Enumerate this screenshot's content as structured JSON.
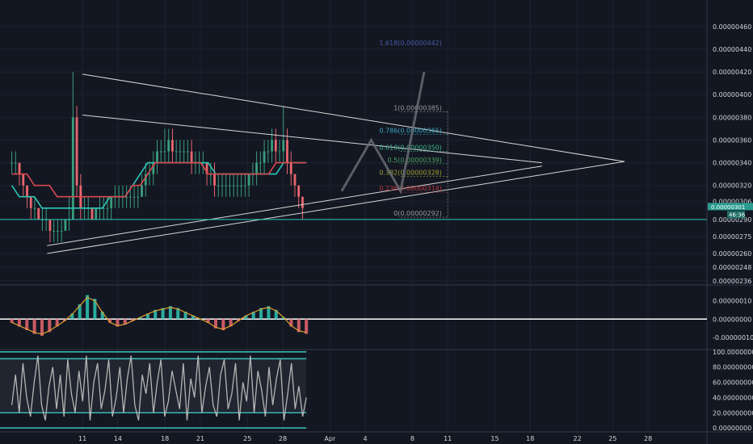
{
  "colors": {
    "background": "#131722",
    "grid": "#1e2230",
    "axis_text": "#d1d4dc",
    "up_candle": "#3a9c7c",
    "down_candle": "#e8666e",
    "teal_ma": "#2ec7b5",
    "red_ma": "#d9484e",
    "trend_lines": "#d8d8d8",
    "projection": "#6d6f78",
    "price_tag": "#2a9d8f",
    "stoch_line": "#b5b5b5",
    "stoch_band": "#3bc3c0"
  },
  "chart_data": [
    {
      "type": "candlestick",
      "panel": "price",
      "y_axis_ticks": [
        "0.00000460",
        "0.00000440",
        "0.00000420",
        "0.00000400",
        "0.00000380",
        "0.00000360",
        "0.00000340",
        "0.00000320",
        "0.00000306",
        "0.00000290",
        "0.00000275",
        "0.00000260",
        "0.00000248",
        "0.00000236"
      ],
      "y_tick_values": [
        4.6e-06,
        4.4e-06,
        4.2e-06,
        4e-06,
        3.8e-06,
        3.6e-06,
        3.4e-06,
        3.2e-06,
        3.06e-06,
        2.9e-06,
        2.75e-06,
        2.6e-06,
        2.48e-06,
        2.36e-06
      ],
      "ylim": [
        2.33e-06,
        4.72e-06
      ],
      "x_axis_ticks": [
        "11",
        "14",
        "18",
        "21",
        "25",
        "28",
        "Apr",
        "4",
        "8",
        "11",
        "15",
        "18",
        "22",
        "25",
        "28"
      ],
      "x_tick_days": [
        11,
        14,
        18,
        21,
        25,
        28,
        32,
        35,
        39,
        42,
        46,
        49,
        53,
        56,
        59
      ],
      "xlim": [
        4,
        64
      ],
      "last_price": "0.00000301",
      "countdown": "46:36",
      "support_level": 2.9e-06,
      "ohlc": [
        [
          3.4e-06,
          3.5e-06,
          3.3e-06,
          3.4e-06
        ],
        [
          3.4e-06,
          3.5e-06,
          3.3e-06,
          3.4e-06
        ],
        [
          3.4e-06,
          3.4e-06,
          3.2e-06,
          3.3e-06
        ],
        [
          3.3e-06,
          3.3e-06,
          3.1e-06,
          3.2e-06
        ],
        [
          3.2e-06,
          3.2e-06,
          3e-06,
          3.1e-06
        ],
        [
          3.1e-06,
          3.1e-06,
          2.9e-06,
          3e-06
        ],
        [
          3e-06,
          3.1e-06,
          2.9e-06,
          3e-06
        ],
        [
          3e-06,
          3e-06,
          2.9e-06,
          2.9e-06
        ],
        [
          2.9e-06,
          3e-06,
          2.8e-06,
          2.9e-06
        ],
        [
          2.9e-06,
          3e-06,
          2.8e-06,
          2.9e-06
        ],
        [
          2.9e-06,
          2.9e-06,
          2.7e-06,
          2.8e-06
        ],
        [
          2.8e-06,
          2.9e-06,
          2.7e-06,
          2.8e-06
        ],
        [
          2.8e-06,
          2.9e-06,
          2.7e-06,
          2.8e-06
        ],
        [
          2.8e-06,
          2.9e-06,
          2.7e-06,
          2.8e-06
        ],
        [
          2.8e-06,
          2.9e-06,
          2.8e-06,
          2.9e-06
        ],
        [
          2.9e-06,
          3.1e-06,
          2.8e-06,
          2.9e-06
        ],
        [
          2.9e-06,
          4.2e-06,
          2.9e-06,
          3.8e-06
        ],
        [
          3.8e-06,
          3.9e-06,
          3.1e-06,
          3.2e-06
        ],
        [
          3.2e-06,
          3.3e-06,
          2.9e-06,
          3e-06
        ],
        [
          3e-06,
          3.1e-06,
          2.9e-06,
          3e-06
        ],
        [
          3e-06,
          3.1e-06,
          2.9e-06,
          3e-06
        ],
        [
          3e-06,
          3e-06,
          2.9e-06,
          2.9e-06
        ],
        [
          2.9e-06,
          3e-06,
          2.9e-06,
          3e-06
        ],
        [
          3e-06,
          3.1e-06,
          2.9e-06,
          3e-06
        ],
        [
          3e-06,
          3.1e-06,
          2.9e-06,
          3e-06
        ],
        [
          3e-06,
          3.1e-06,
          2.9e-06,
          3e-06
        ],
        [
          3e-06,
          3.1e-06,
          2.9e-06,
          3.1e-06
        ],
        [
          3.1e-06,
          3.2e-06,
          3e-06,
          3.1e-06
        ],
        [
          3.1e-06,
          3.2e-06,
          3e-06,
          3.1e-06
        ],
        [
          3.1e-06,
          3.2e-06,
          3e-06,
          3.1e-06
        ],
        [
          3.1e-06,
          3.2e-06,
          3e-06,
          3.1e-06
        ],
        [
          3.1e-06,
          3.2e-06,
          3e-06,
          3.1e-06
        ],
        [
          3.1e-06,
          3.2e-06,
          3e-06,
          3.1e-06
        ],
        [
          3.1e-06,
          3.2e-06,
          3e-06,
          3.1e-06
        ],
        [
          3.1e-06,
          3.3e-06,
          3.1e-06,
          3.2e-06
        ],
        [
          3.2e-06,
          3.4e-06,
          3.1e-06,
          3.3e-06
        ],
        [
          3.3e-06,
          3.4e-06,
          3.2e-06,
          3.3e-06
        ],
        [
          3.3e-06,
          3.5e-06,
          3.2e-06,
          3.4e-06
        ],
        [
          3.4e-06,
          3.6e-06,
          3.3e-06,
          3.5e-06
        ],
        [
          3.5e-06,
          3.6e-06,
          3.4e-06,
          3.5e-06
        ],
        [
          3.5e-06,
          3.7e-06,
          3.4e-06,
          3.5e-06
        ],
        [
          3.5e-06,
          3.7e-06,
          3.4e-06,
          3.6e-06
        ],
        [
          3.6e-06,
          3.7e-06,
          3.4e-06,
          3.5e-06
        ],
        [
          3.5e-06,
          3.6e-06,
          3.4e-06,
          3.5e-06
        ],
        [
          3.5e-06,
          3.6e-06,
          3.4e-06,
          3.5e-06
        ],
        [
          3.5e-06,
          3.6e-06,
          3.4e-06,
          3.5e-06
        ],
        [
          3.5e-06,
          3.6e-06,
          3.4e-06,
          3.5e-06
        ],
        [
          3.5e-06,
          3.6e-06,
          3.3e-06,
          3.4e-06
        ],
        [
          3.4e-06,
          3.5e-06,
          3.3e-06,
          3.4e-06
        ],
        [
          3.4e-06,
          3.5e-06,
          3.3e-06,
          3.4e-06
        ],
        [
          3.4e-06,
          3.5e-06,
          3.3e-06,
          3.4e-06
        ],
        [
          3.4e-06,
          3.4e-06,
          3.2e-06,
          3.3e-06
        ],
        [
          3.3e-06,
          3.4e-06,
          3.2e-06,
          3.3e-06
        ],
        [
          3.3e-06,
          3.4e-06,
          3.1e-06,
          3.2e-06
        ],
        [
          3.2e-06,
          3.3e-06,
          3.1e-06,
          3.2e-06
        ],
        [
          3.2e-06,
          3.3e-06,
          3.1e-06,
          3.2e-06
        ],
        [
          3.2e-06,
          3.3e-06,
          3.1e-06,
          3.2e-06
        ],
        [
          3.2e-06,
          3.3e-06,
          3.1e-06,
          3.2e-06
        ],
        [
          3.2e-06,
          3.3e-06,
          3.1e-06,
          3.2e-06
        ],
        [
          3.2e-06,
          3.3e-06,
          3.1e-06,
          3.2e-06
        ],
        [
          3.2e-06,
          3.3e-06,
          3.1e-06,
          3.2e-06
        ],
        [
          3.2e-06,
          3.3e-06,
          3.1e-06,
          3.2e-06
        ],
        [
          3.2e-06,
          3.3e-06,
          3.1e-06,
          3.3e-06
        ],
        [
          3.3e-06,
          3.4e-06,
          3.2e-06,
          3.3e-06
        ],
        [
          3.3e-06,
          3.5e-06,
          3.2e-06,
          3.4e-06
        ],
        [
          3.4e-06,
          3.5e-06,
          3.3e-06,
          3.4e-06
        ],
        [
          3.4e-06,
          3.6e-06,
          3.3e-06,
          3.5e-06
        ],
        [
          3.5e-06,
          3.6e-06,
          3.4e-06,
          3.5e-06
        ],
        [
          3.5e-06,
          3.7e-06,
          3.4e-06,
          3.6e-06
        ],
        [
          3.6e-06,
          3.7e-06,
          3.4e-06,
          3.5e-06
        ],
        [
          3.5e-06,
          3.6e-06,
          3.4e-06,
          3.5e-06
        ],
        [
          3.5e-06,
          3.9e-06,
          3.4e-06,
          3.6e-06
        ],
        [
          3.6e-06,
          3.7e-06,
          3.3e-06,
          3.4e-06
        ],
        [
          3.4e-06,
          3.5e-06,
          3.2e-06,
          3.3e-06
        ],
        [
          3.3e-06,
          3.3e-06,
          3.1e-06,
          3.2e-06
        ],
        [
          3.2e-06,
          3.2e-06,
          3e-06,
          3.1e-06
        ],
        [
          3.1e-06,
          3.1e-06,
          2.9e-06,
          3e-06
        ]
      ],
      "moving_averages": [
        {
          "color": "teal",
          "values": [
            3.2e-06,
            3.1e-06,
            3.1e-06,
            3.1e-06,
            3e-06,
            3e-06,
            3e-06,
            3e-06,
            3e-06,
            3e-06,
            3e-06,
            3e-06,
            3e-06,
            3.1e-06,
            3.1e-06,
            3.1e-06,
            3.2e-06,
            3.3e-06,
            3.4e-06,
            3.4e-06,
            3.4e-06,
            3.4e-06,
            3.4e-06,
            3.4e-06,
            3.4e-06,
            3.4e-06,
            3.4e-06,
            3.3e-06,
            3.3e-06,
            3.3e-06,
            3.3e-06,
            3.3e-06,
            3.3e-06,
            3.3e-06,
            3.3e-06,
            3.3e-06,
            3.4e-06,
            3.4e-06,
            3.4e-06,
            3.4e-06
          ]
        },
        {
          "color": "red",
          "values": [
            3.3e-06,
            3.3e-06,
            3.3e-06,
            3.2e-06,
            3.2e-06,
            3.2e-06,
            3.1e-06,
            3.1e-06,
            3.1e-06,
            3.1e-06,
            3.1e-06,
            3.1e-06,
            3.1e-06,
            3.1e-06,
            3.1e-06,
            3.1e-06,
            3.2e-06,
            3.2e-06,
            3.3e-06,
            3.4e-06,
            3.4e-06,
            3.4e-06,
            3.4e-06,
            3.4e-06,
            3.4e-06,
            3.4e-06,
            3.3e-06,
            3.3e-06,
            3.3e-06,
            3.3e-06,
            3.3e-06,
            3.3e-06,
            3.3e-06,
            3.3e-06,
            3.3e-06,
            3.4e-06,
            3.4e-06,
            3.4e-06,
            3.4e-06,
            3.4e-06
          ]
        }
      ],
      "projection": [
        [
          33,
          3.15e-06
        ],
        [
          35.5,
          3.6e-06
        ],
        [
          38,
          3.15e-06
        ],
        [
          40,
          4.2e-06
        ]
      ],
      "fib_levels": [
        {
          "label": "1.618(0.00000442)",
          "value": 4.42e-06,
          "color": "#4b5aa8"
        },
        {
          "label": "1(0.00000385)",
          "value": 3.85e-06,
          "color": "#9b9b9b"
        },
        {
          "label": "0.786(0.00000365)",
          "value": 3.65e-06,
          "color": "#3aa6c2"
        },
        {
          "label": "0.618(0.00000350)",
          "value": 3.5e-06,
          "color": "#3bb58a"
        },
        {
          "label": "0.5(0.00000339)",
          "value": 3.39e-06,
          "color": "#4aa25c"
        },
        {
          "label": "0.382(0.00000328)",
          "value": 3.28e-06,
          "color": "#a0a02d"
        },
        {
          "label": "0.236(0.00000314)",
          "value": 3.14e-06,
          "color": "#c0393f"
        },
        {
          "label": "0(0.00000292)",
          "value": 2.92e-06,
          "color": "#9b9b9b"
        }
      ]
    },
    {
      "type": "macd",
      "panel": "macd",
      "y_axis_ticks": [
        "0.00000010",
        "0.00000000",
        "-0.00000010"
      ],
      "y_tick_values": [
        1e-07,
        0,
        -1e-07
      ],
      "ylim": [
        -1.6e-07,
        1.8e-07
      ],
      "values": [
        -2e-08,
        -4e-08,
        -6e-08,
        -8e-08,
        -9e-08,
        -7e-08,
        -4e-08,
        -1e-08,
        3e-08,
        8e-08,
        1.3e-07,
        1.1e-07,
        4e-08,
        -2e-08,
        -4e-08,
        -3e-08,
        -1e-08,
        1e-08,
        3e-08,
        5e-08,
        6e-08,
        7e-08,
        6e-08,
        4e-08,
        2e-08,
        0,
        -2e-08,
        -5e-08,
        -6e-08,
        -4e-08,
        -1e-08,
        2e-08,
        4e-08,
        6e-08,
        7e-08,
        5e-08,
        1e-08,
        -4e-08,
        -7e-08,
        -8e-08
      ]
    },
    {
      "type": "stochastic",
      "panel": "stoch",
      "y_axis_ticks": [
        "100.00000000",
        "80.00000000",
        "60.00000000",
        "40.00000000",
        "20.00000000",
        "0.00000000"
      ],
      "y_tick_values": [
        100,
        80,
        60,
        40,
        20,
        0
      ],
      "ylim": [
        -2,
        102
      ],
      "bands": [
        91,
        20
      ],
      "values": [
        30,
        70,
        20,
        85,
        40,
        15,
        60,
        95,
        30,
        10,
        55,
        80,
        25,
        70,
        15,
        90,
        45,
        20,
        75,
        35,
        95,
        10,
        60,
        85,
        25,
        50,
        90,
        15,
        40,
        80,
        20,
        65,
        95,
        30,
        10,
        70,
        45,
        85,
        20,
        60,
        90,
        15,
        35,
        75,
        50,
        25,
        85,
        10,
        65,
        40,
        95,
        20,
        55,
        80,
        30,
        15,
        70,
        90,
        25,
        45,
        85,
        10,
        60,
        35,
        95,
        20,
        75,
        50,
        15,
        80,
        30,
        65,
        90,
        10,
        45,
        85,
        25,
        55,
        15,
        40
      ]
    }
  ]
}
